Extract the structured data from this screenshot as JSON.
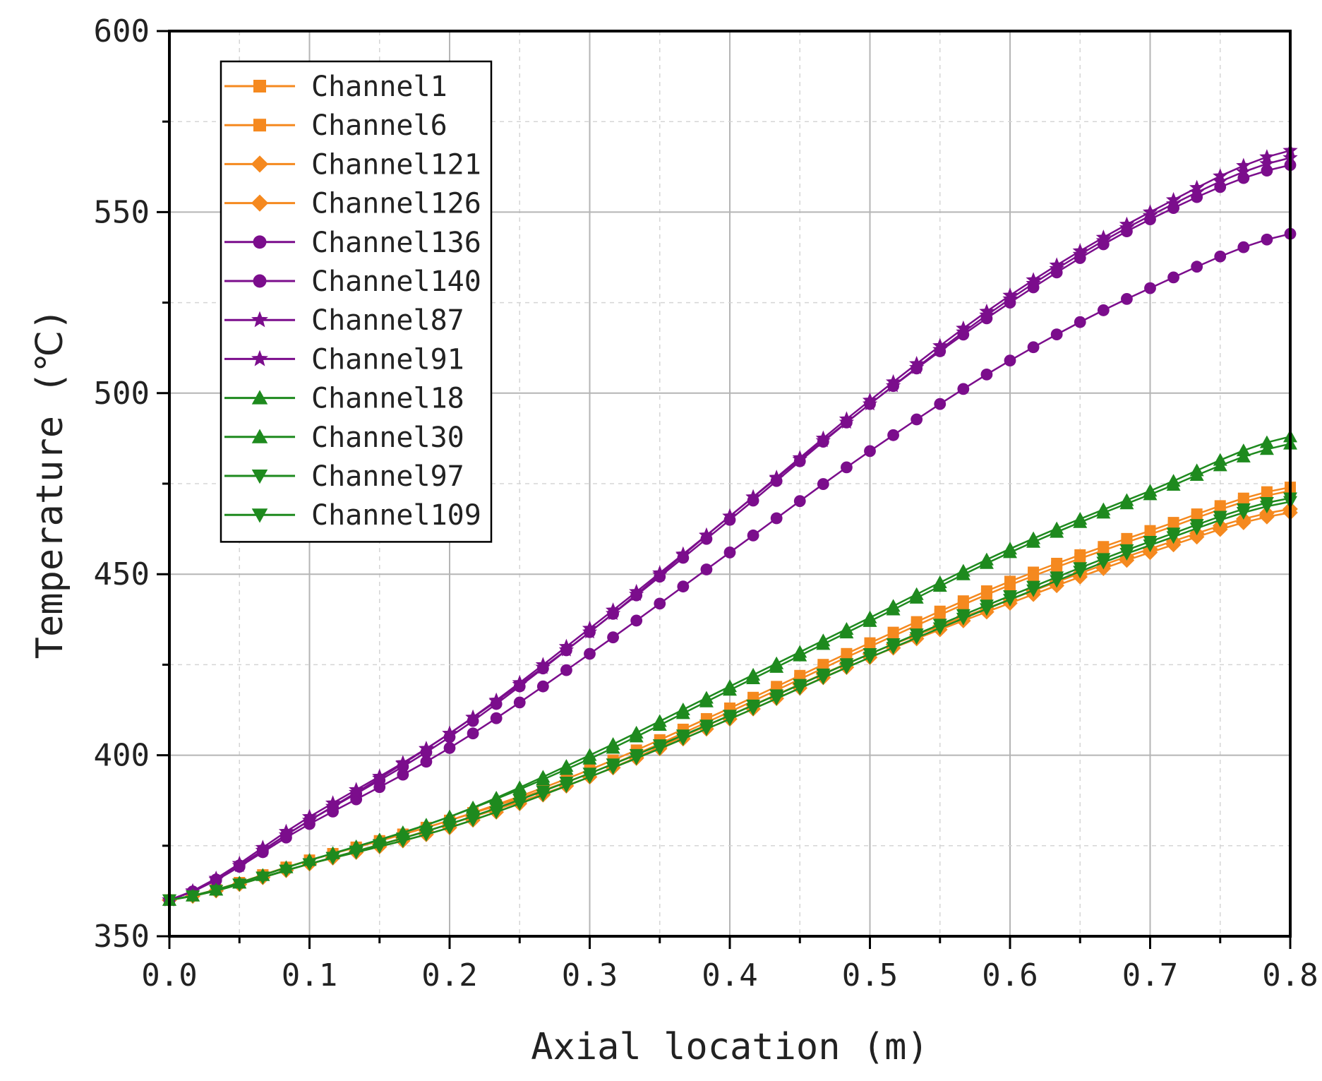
{
  "chart_data": {
    "type": "line",
    "title": "",
    "xlabel": "Axial location (m)",
    "ylabel": "Temperature (℃)",
    "xlim": [
      0.0,
      0.8
    ],
    "ylim": [
      350,
      600
    ],
    "x_ticks": [
      "0.0",
      "0.1",
      "0.2",
      "0.3",
      "0.4",
      "0.5",
      "0.6",
      "0.7",
      "0.8"
    ],
    "y_ticks": [
      "350",
      "400",
      "450",
      "500",
      "550",
      "600"
    ],
    "grid": true,
    "legend_position": "top-left",
    "colors": {
      "orange": "#f5891f",
      "purple": "#7b0d8c",
      "green": "#1e8a1e"
    },
    "x": [
      0.0,
      0.1,
      0.2,
      0.3,
      0.4,
      0.5,
      0.6,
      0.7,
      0.8
    ],
    "series": [
      {
        "name": "Channel1",
        "color": "orange",
        "marker": "square",
        "values": [
          360,
          371,
          382,
          396,
          413,
          431,
          448,
          462,
          474
        ]
      },
      {
        "name": "Channel6",
        "color": "orange",
        "marker": "square",
        "values": [
          360,
          371,
          382,
          395,
          412,
          430,
          447,
          461,
          473
        ]
      },
      {
        "name": "Channel121",
        "color": "orange",
        "marker": "diamond",
        "values": [
          360,
          370,
          380,
          394,
          410,
          427,
          442,
          456,
          467
        ]
      },
      {
        "name": "Channel126",
        "color": "orange",
        "marker": "diamond",
        "values": [
          360,
          370,
          381,
          394,
          411,
          428,
          443,
          457,
          468
        ]
      },
      {
        "name": "Channel136",
        "color": "purple",
        "marker": "circle",
        "values": [
          360,
          382,
          405,
          434,
          465,
          497,
          525,
          548,
          563
        ]
      },
      {
        "name": "Channel140",
        "color": "purple",
        "marker": "circle",
        "values": [
          360,
          381,
          402,
          428,
          456,
          484,
          509,
          529,
          544
        ]
      },
      {
        "name": "Channel87",
        "color": "purple",
        "marker": "star",
        "values": [
          360,
          383,
          406,
          435,
          466,
          498,
          527,
          550,
          567
        ]
      },
      {
        "name": "Channel91",
        "color": "purple",
        "marker": "star",
        "values": [
          360,
          382,
          406,
          434,
          466,
          497,
          526,
          549,
          565
        ]
      },
      {
        "name": "Channel18",
        "color": "green",
        "marker": "triangle-up",
        "values": [
          360,
          371,
          383,
          400,
          419,
          438,
          457,
          473,
          488
        ]
      },
      {
        "name": "Channel30",
        "color": "green",
        "marker": "triangle-up",
        "values": [
          360,
          371,
          383,
          399,
          418,
          437,
          456,
          472,
          486
        ]
      },
      {
        "name": "Channel97",
        "color": "green",
        "marker": "triangle-down",
        "values": [
          360,
          370,
          381,
          395,
          411,
          428,
          444,
          459,
          471
        ]
      },
      {
        "name": "Channel109",
        "color": "green",
        "marker": "triangle-down",
        "values": [
          360,
          370,
          380,
          394,
          410,
          427,
          443,
          458,
          470
        ]
      }
    ]
  }
}
